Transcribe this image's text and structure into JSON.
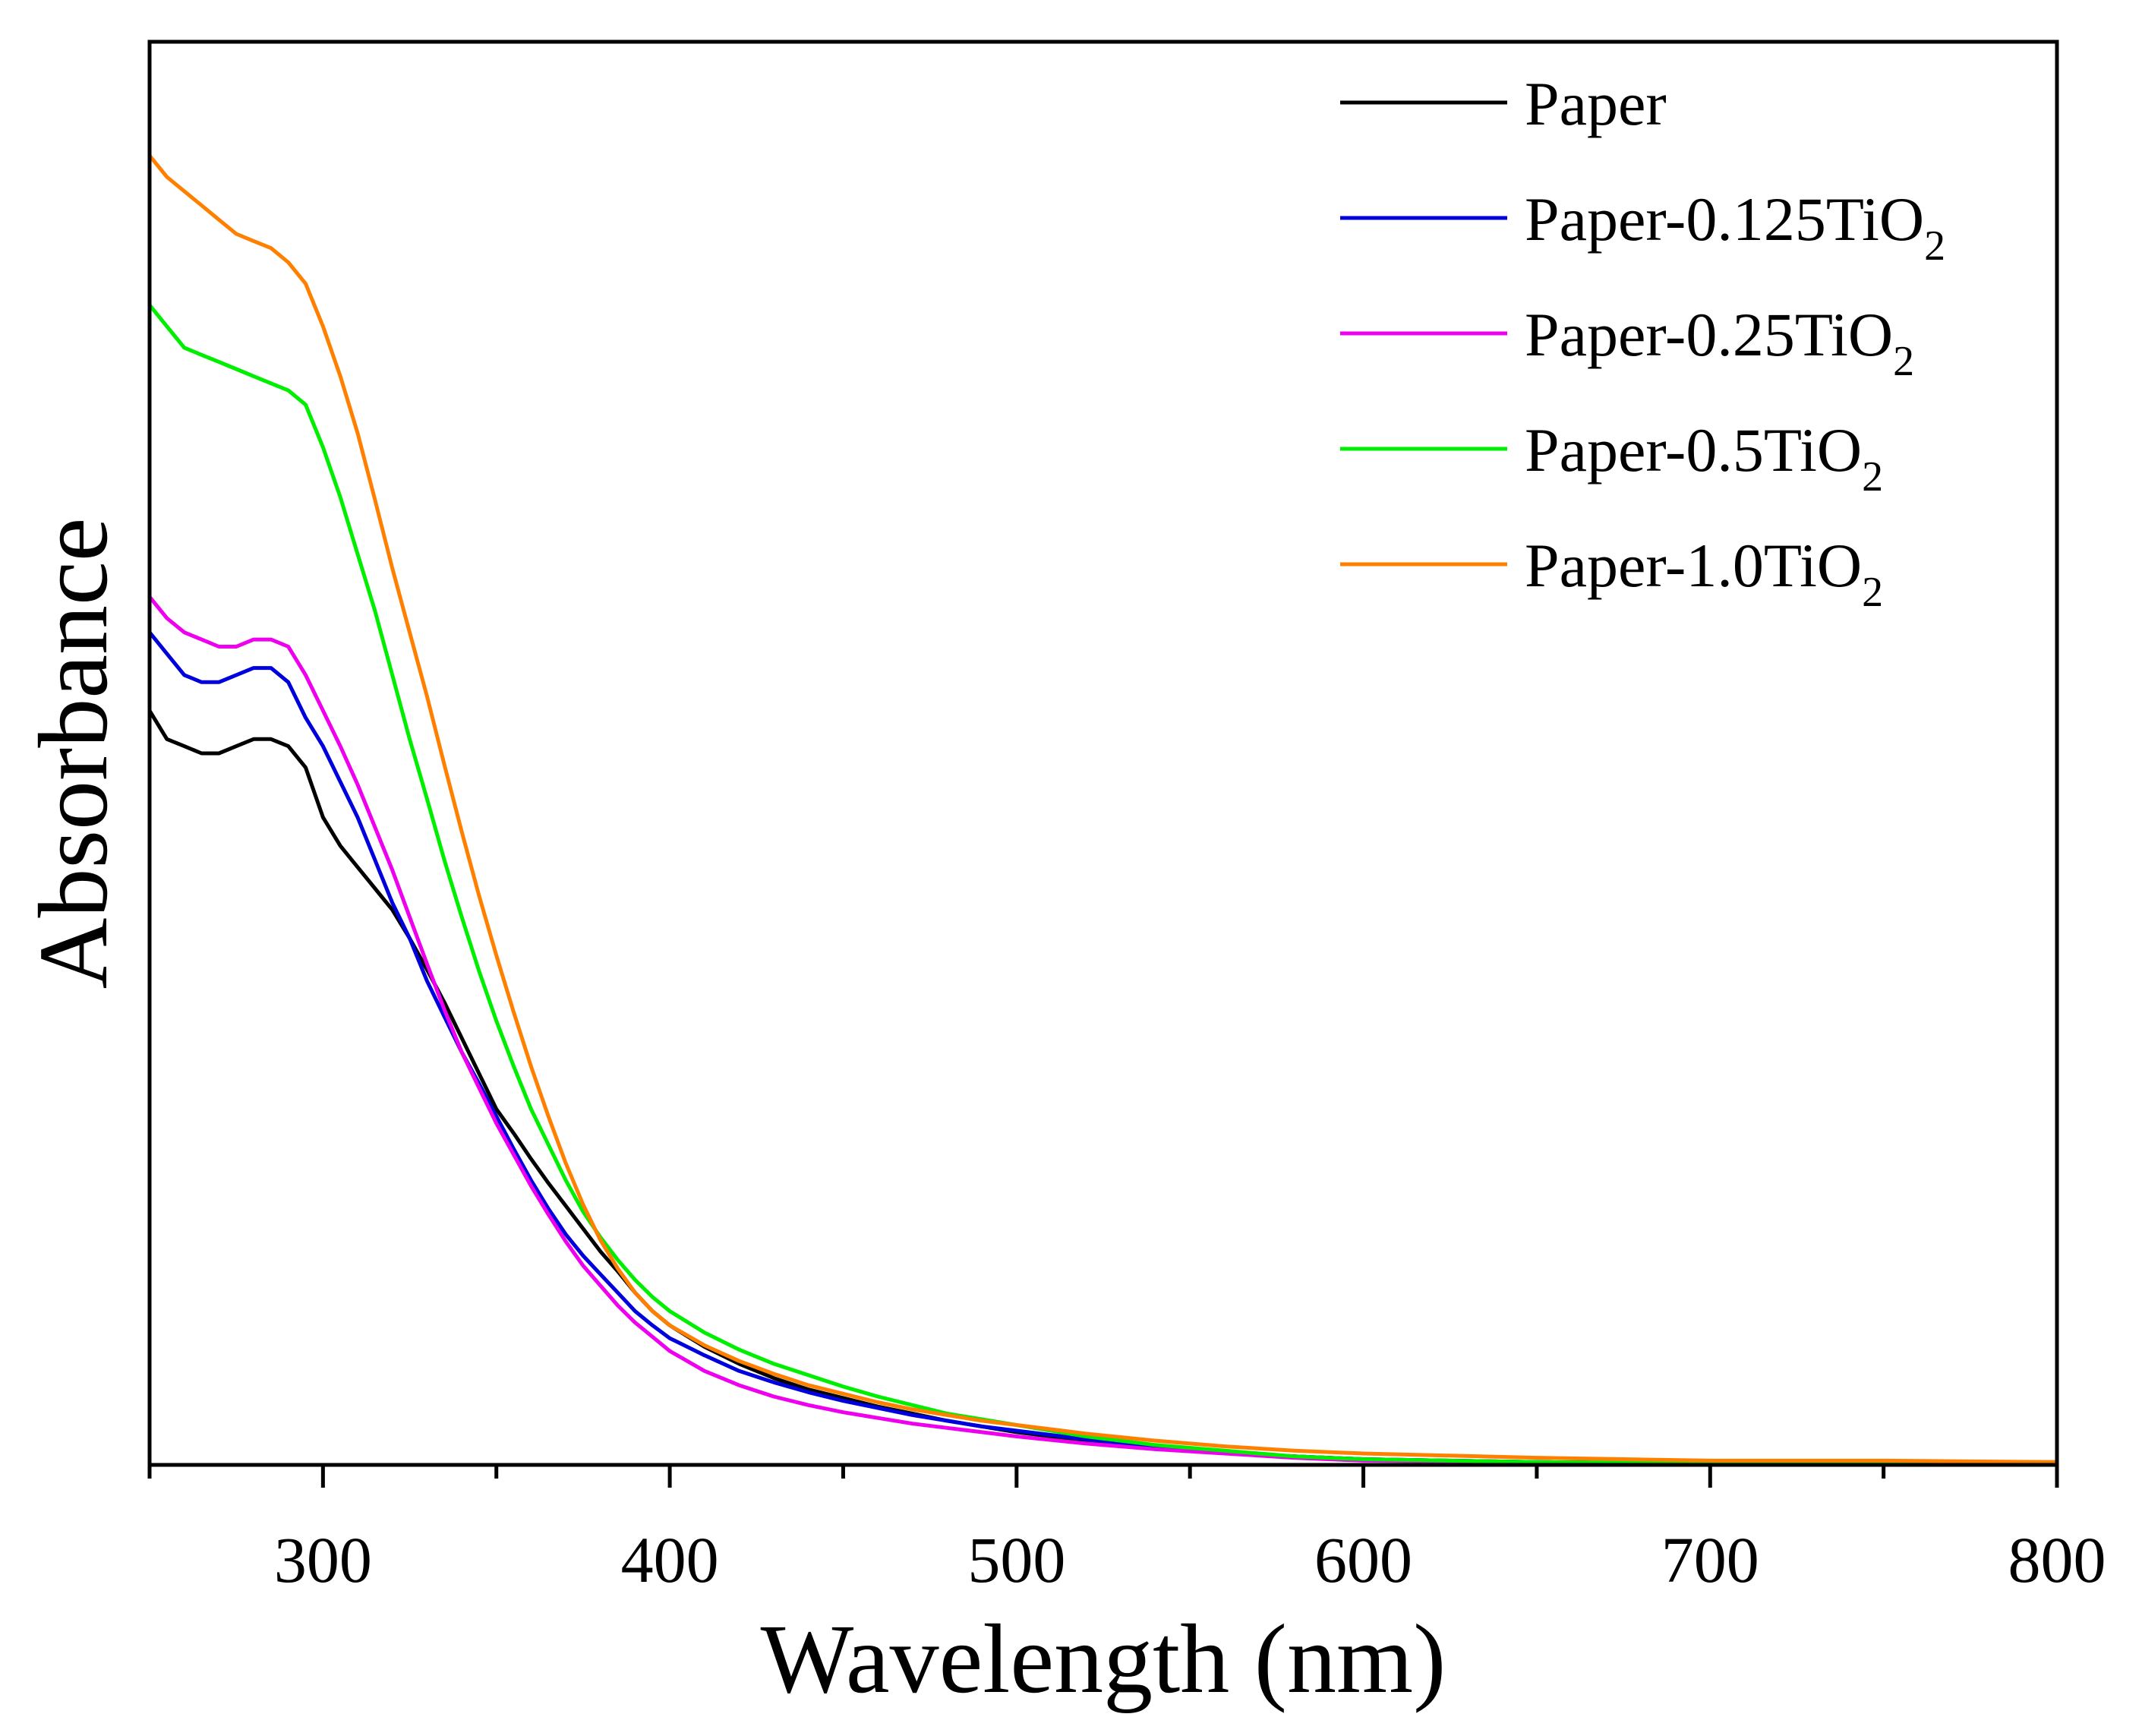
{
  "chart_data": {
    "type": "line",
    "title": "",
    "xlabel": "Wavelength (nm)",
    "ylabel": "Absorbance",
    "xlim": [
      250,
      800
    ],
    "ylim": [
      0,
      1.0
    ],
    "x_ticks_major": [
      300,
      400,
      500,
      600,
      700,
      800
    ],
    "x_tick_labels": [
      "300",
      "400",
      "500",
      "600",
      "700",
      "800"
    ],
    "y_tick_labels": [],
    "grid": false,
    "legend_position": "top-right",
    "series": [
      {
        "name": "Paper",
        "name_base": "Paper",
        "name_sub": "",
        "color": "#000000",
        "points": [
          [
            250,
            0.53
          ],
          [
            255,
            0.51
          ],
          [
            260,
            0.505
          ],
          [
            265,
            0.5
          ],
          [
            270,
            0.5
          ],
          [
            275,
            0.505
          ],
          [
            280,
            0.51
          ],
          [
            285,
            0.51
          ],
          [
            290,
            0.505
          ],
          [
            295,
            0.49
          ],
          [
            300,
            0.455
          ],
          [
            305,
            0.435
          ],
          [
            310,
            0.42
          ],
          [
            315,
            0.405
          ],
          [
            320,
            0.39
          ],
          [
            325,
            0.37
          ],
          [
            330,
            0.348
          ],
          [
            335,
            0.325
          ],
          [
            340,
            0.3
          ],
          [
            345,
            0.275
          ],
          [
            350,
            0.25
          ],
          [
            355,
            0.233
          ],
          [
            360,
            0.215
          ],
          [
            365,
            0.198
          ],
          [
            370,
            0.182
          ],
          [
            375,
            0.166
          ],
          [
            380,
            0.15
          ],
          [
            385,
            0.136
          ],
          [
            390,
            0.121
          ],
          [
            395,
            0.108
          ],
          [
            400,
            0.098
          ],
          [
            410,
            0.083
          ],
          [
            420,
            0.071
          ],
          [
            430,
            0.061
          ],
          [
            440,
            0.053
          ],
          [
            450,
            0.047
          ],
          [
            460,
            0.041
          ],
          [
            470,
            0.036
          ],
          [
            480,
            0.031
          ],
          [
            490,
            0.027
          ],
          [
            500,
            0.023
          ],
          [
            520,
            0.017
          ],
          [
            540,
            0.012
          ],
          [
            560,
            0.009
          ],
          [
            580,
            0.006
          ],
          [
            600,
            0.004
          ],
          [
            650,
            0.002
          ],
          [
            700,
            0.001
          ],
          [
            750,
            0.001
          ],
          [
            800,
            0.0
          ]
        ]
      },
      {
        "name": "Paper-0.125TiO2",
        "name_base": "Paper-0.125TiO",
        "name_sub": "2",
        "color": "#0000dd",
        "points": [
          [
            250,
            0.585
          ],
          [
            255,
            0.57
          ],
          [
            260,
            0.555
          ],
          [
            265,
            0.55
          ],
          [
            270,
            0.55
          ],
          [
            275,
            0.555
          ],
          [
            280,
            0.56
          ],
          [
            285,
            0.56
          ],
          [
            290,
            0.55
          ],
          [
            295,
            0.525
          ],
          [
            300,
            0.505
          ],
          [
            305,
            0.48
          ],
          [
            310,
            0.455
          ],
          [
            315,
            0.425
          ],
          [
            320,
            0.395
          ],
          [
            325,
            0.37
          ],
          [
            330,
            0.34
          ],
          [
            335,
            0.315
          ],
          [
            340,
            0.29
          ],
          [
            345,
            0.268
          ],
          [
            350,
            0.245
          ],
          [
            355,
            0.222
          ],
          [
            360,
            0.2
          ],
          [
            365,
            0.18
          ],
          [
            370,
            0.162
          ],
          [
            375,
            0.147
          ],
          [
            380,
            0.134
          ],
          [
            385,
            0.121
          ],
          [
            390,
            0.108
          ],
          [
            395,
            0.098
          ],
          [
            400,
            0.089
          ],
          [
            410,
            0.077
          ],
          [
            420,
            0.066
          ],
          [
            430,
            0.058
          ],
          [
            440,
            0.051
          ],
          [
            450,
            0.045
          ],
          [
            460,
            0.04
          ],
          [
            470,
            0.035
          ],
          [
            480,
            0.031
          ],
          [
            490,
            0.027
          ],
          [
            500,
            0.024
          ],
          [
            520,
            0.018
          ],
          [
            540,
            0.013
          ],
          [
            560,
            0.009
          ],
          [
            580,
            0.006
          ],
          [
            600,
            0.004
          ],
          [
            650,
            0.002
          ],
          [
            700,
            0.001
          ],
          [
            750,
            0.001
          ],
          [
            800,
            0.0
          ]
        ]
      },
      {
        "name": "Paper-0.25TiO2",
        "name_base": "Paper-0.25TiO",
        "name_sub": "2",
        "color": "#ee00ee",
        "points": [
          [
            250,
            0.61
          ],
          [
            255,
            0.595
          ],
          [
            260,
            0.585
          ],
          [
            265,
            0.58
          ],
          [
            270,
            0.575
          ],
          [
            275,
            0.575
          ],
          [
            280,
            0.58
          ],
          [
            285,
            0.58
          ],
          [
            290,
            0.575
          ],
          [
            295,
            0.555
          ],
          [
            300,
            0.53
          ],
          [
            305,
            0.505
          ],
          [
            310,
            0.478
          ],
          [
            315,
            0.448
          ],
          [
            320,
            0.418
          ],
          [
            325,
            0.385
          ],
          [
            330,
            0.352
          ],
          [
            335,
            0.32
          ],
          [
            340,
            0.29
          ],
          [
            345,
            0.265
          ],
          [
            350,
            0.24
          ],
          [
            355,
            0.218
          ],
          [
            360,
            0.196
          ],
          [
            365,
            0.176
          ],
          [
            370,
            0.157
          ],
          [
            375,
            0.14
          ],
          [
            380,
            0.126
          ],
          [
            385,
            0.112
          ],
          [
            390,
            0.1
          ],
          [
            395,
            0.09
          ],
          [
            400,
            0.08
          ],
          [
            410,
            0.066
          ],
          [
            420,
            0.056
          ],
          [
            430,
            0.048
          ],
          [
            440,
            0.042
          ],
          [
            450,
            0.037
          ],
          [
            460,
            0.033
          ],
          [
            470,
            0.029
          ],
          [
            480,
            0.026
          ],
          [
            490,
            0.023
          ],
          [
            500,
            0.02
          ],
          [
            520,
            0.015
          ],
          [
            540,
            0.011
          ],
          [
            560,
            0.008
          ],
          [
            580,
            0.005
          ],
          [
            600,
            0.003
          ],
          [
            650,
            0.002
          ],
          [
            700,
            0.001
          ],
          [
            750,
            0.001
          ],
          [
            800,
            0.0
          ]
        ]
      },
      {
        "name": "Paper-0.5TiO2",
        "name_base": "Paper-0.5TiO",
        "name_sub": "2",
        "color": "#00ee00",
        "points": [
          [
            250,
            0.815
          ],
          [
            255,
            0.8
          ],
          [
            260,
            0.785
          ],
          [
            265,
            0.78
          ],
          [
            270,
            0.775
          ],
          [
            275,
            0.77
          ],
          [
            280,
            0.765
          ],
          [
            285,
            0.76
          ],
          [
            290,
            0.755
          ],
          [
            295,
            0.745
          ],
          [
            300,
            0.715
          ],
          [
            305,
            0.68
          ],
          [
            310,
            0.64
          ],
          [
            315,
            0.6
          ],
          [
            320,
            0.555
          ],
          [
            325,
            0.51
          ],
          [
            330,
            0.468
          ],
          [
            335,
            0.425
          ],
          [
            340,
            0.385
          ],
          [
            345,
            0.347
          ],
          [
            350,
            0.312
          ],
          [
            355,
            0.28
          ],
          [
            360,
            0.25
          ],
          [
            365,
            0.225
          ],
          [
            370,
            0.2
          ],
          [
            375,
            0.178
          ],
          [
            380,
            0.16
          ],
          [
            385,
            0.144
          ],
          [
            390,
            0.13
          ],
          [
            395,
            0.118
          ],
          [
            400,
            0.108
          ],
          [
            410,
            0.093
          ],
          [
            420,
            0.081
          ],
          [
            430,
            0.071
          ],
          [
            440,
            0.063
          ],
          [
            450,
            0.055
          ],
          [
            460,
            0.048
          ],
          [
            470,
            0.042
          ],
          [
            480,
            0.036
          ],
          [
            490,
            0.032
          ],
          [
            500,
            0.028
          ],
          [
            520,
            0.02
          ],
          [
            540,
            0.014
          ],
          [
            560,
            0.01
          ],
          [
            580,
            0.006
          ],
          [
            600,
            0.004
          ],
          [
            650,
            0.002
          ],
          [
            700,
            0.001
          ],
          [
            750,
            0.001
          ],
          [
            800,
            0.0
          ]
        ]
      },
      {
        "name": "Paper-1.0TiO2",
        "name_base": "Paper-1.0TiO",
        "name_sub": "2",
        "color": "#ff8000",
        "points": [
          [
            250,
            0.92
          ],
          [
            255,
            0.905
          ],
          [
            260,
            0.895
          ],
          [
            265,
            0.885
          ],
          [
            270,
            0.875
          ],
          [
            275,
            0.865
          ],
          [
            280,
            0.86
          ],
          [
            285,
            0.855
          ],
          [
            290,
            0.845
          ],
          [
            295,
            0.83
          ],
          [
            300,
            0.8
          ],
          [
            305,
            0.765
          ],
          [
            310,
            0.725
          ],
          [
            315,
            0.678
          ],
          [
            320,
            0.63
          ],
          [
            325,
            0.585
          ],
          [
            330,
            0.54
          ],
          [
            335,
            0.492
          ],
          [
            340,
            0.445
          ],
          [
            345,
            0.4
          ],
          [
            350,
            0.358
          ],
          [
            355,
            0.318
          ],
          [
            360,
            0.28
          ],
          [
            365,
            0.245
          ],
          [
            370,
            0.212
          ],
          [
            375,
            0.183
          ],
          [
            380,
            0.158
          ],
          [
            385,
            0.138
          ],
          [
            390,
            0.121
          ],
          [
            395,
            0.108
          ],
          [
            400,
            0.098
          ],
          [
            410,
            0.084
          ],
          [
            420,
            0.073
          ],
          [
            430,
            0.064
          ],
          [
            440,
            0.056
          ],
          [
            450,
            0.05
          ],
          [
            460,
            0.044
          ],
          [
            470,
            0.039
          ],
          [
            480,
            0.035
          ],
          [
            490,
            0.031
          ],
          [
            500,
            0.028
          ],
          [
            520,
            0.022
          ],
          [
            540,
            0.017
          ],
          [
            560,
            0.013
          ],
          [
            580,
            0.01
          ],
          [
            600,
            0.008
          ],
          [
            650,
            0.005
          ],
          [
            700,
            0.003
          ],
          [
            750,
            0.003
          ],
          [
            800,
            0.002
          ]
        ]
      }
    ]
  }
}
